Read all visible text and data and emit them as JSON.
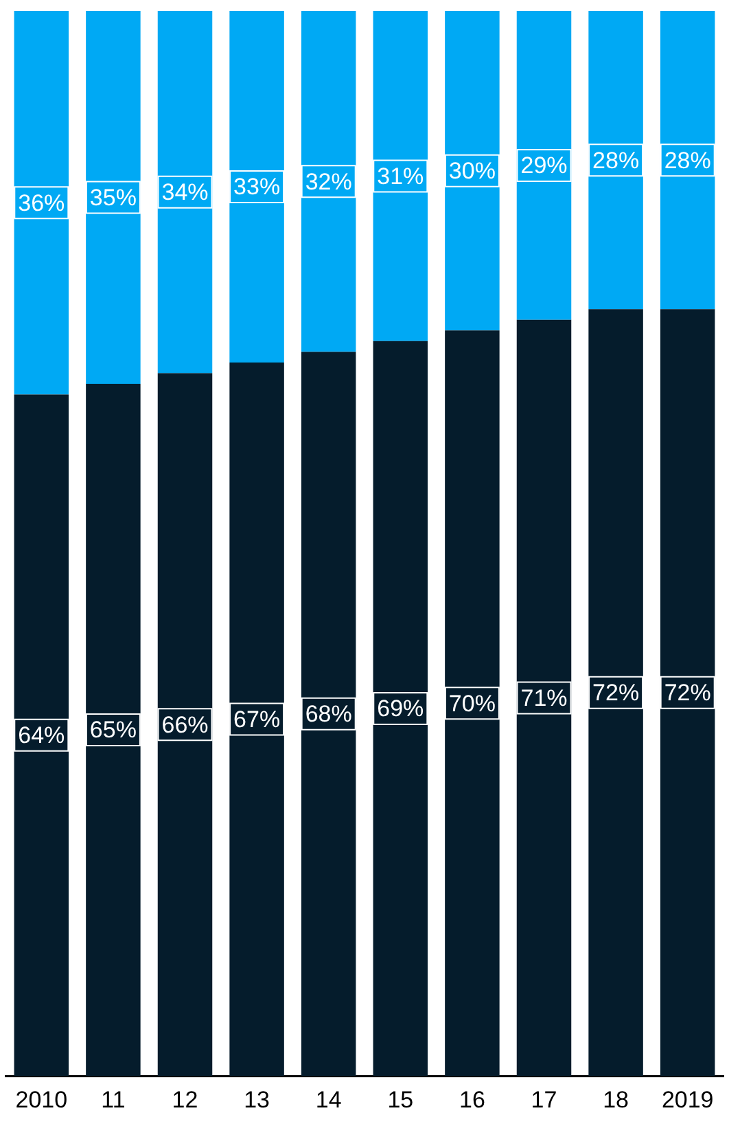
{
  "chart_data": {
    "type": "bar",
    "stacked": true,
    "categories": [
      "2010",
      "11",
      "12",
      "13",
      "14",
      "15",
      "16",
      "17",
      "18",
      "2019"
    ],
    "series": [
      {
        "color": "#051c2c",
        "values": [
          64,
          65,
          66,
          67,
          68,
          69,
          70,
          71,
          72,
          72
        ],
        "value_labels": [
          "64%",
          "65%",
          "66%",
          "67%",
          "68%",
          "69%",
          "70%",
          "71%",
          "72%",
          "72%"
        ]
      },
      {
        "color": "#00a9f4",
        "values": [
          36,
          35,
          34,
          33,
          32,
          31,
          30,
          29,
          28,
          28
        ],
        "value_labels": [
          "36%",
          "35%",
          "34%",
          "33%",
          "32%",
          "31%",
          "30%",
          "29%",
          "28%",
          "28%"
        ]
      }
    ],
    "tick_labels": "x",
    "grid": false,
    "legend": false
  }
}
